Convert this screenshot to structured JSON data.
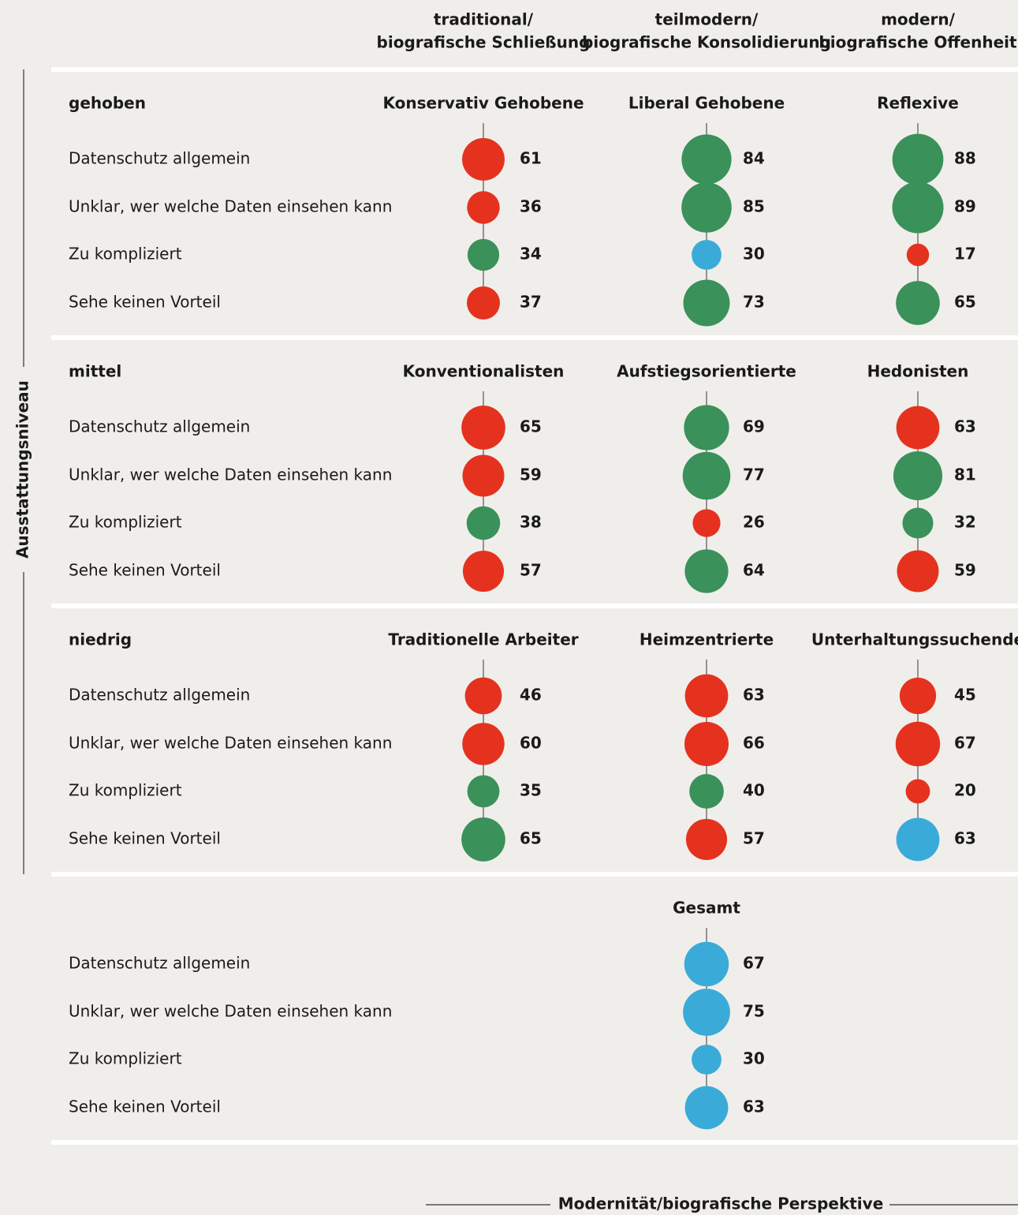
{
  "chart_data": {
    "type": "bubble",
    "columns": [
      [
        "traditional/",
        "biografische Schließung"
      ],
      [
        "teilmodern/",
        "biografische Konsolidierung"
      ],
      [
        "modern/",
        "biografische Offenheit"
      ]
    ],
    "ylabel": "Ausstattungsniveau",
    "xlabel": "Modernität/biografische Perspektive",
    "items": [
      "Datenschutz allgemein",
      "Unklar, wer welche Daten einsehen kann",
      "Zu kompliziert",
      "Sehe keinen Vorteil"
    ],
    "panels": [
      {
        "level": "gehoben",
        "groups": [
          {
            "name": "Konservativ Gehobene",
            "values": [
              61,
              36,
              34,
              37
            ],
            "colors": [
              "#e5321f",
              "#e5321f",
              "#3a915a",
              "#e5321f"
            ]
          },
          {
            "name": "Liberal Gehobene",
            "values": [
              84,
              85,
              30,
              73
            ],
            "colors": [
              "#3a915a",
              "#3a915a",
              "#3aabd8",
              "#3a915a"
            ]
          },
          {
            "name": "Reflexive",
            "values": [
              88,
              89,
              17,
              65
            ],
            "colors": [
              "#3a915a",
              "#3a915a",
              "#e5321f",
              "#3a915a"
            ]
          }
        ]
      },
      {
        "level": "mittel",
        "groups": [
          {
            "name": "Konventionalisten",
            "values": [
              65,
              59,
              38,
              57
            ],
            "colors": [
              "#e5321f",
              "#e5321f",
              "#3a915a",
              "#e5321f"
            ]
          },
          {
            "name": "Aufstiegsorientierte",
            "values": [
              69,
              77,
              26,
              64
            ],
            "colors": [
              "#3a915a",
              "#3a915a",
              "#e5321f",
              "#3a915a"
            ]
          },
          {
            "name": "Hedonisten",
            "values": [
              63,
              81,
              32,
              59
            ],
            "colors": [
              "#e5321f",
              "#3a915a",
              "#3a915a",
              "#e5321f"
            ]
          }
        ]
      },
      {
        "level": "niedrig",
        "groups": [
          {
            "name": "Traditionelle Arbeiter",
            "values": [
              46,
              60,
              35,
              65
            ],
            "colors": [
              "#e5321f",
              "#e5321f",
              "#3a915a",
              "#3a915a"
            ]
          },
          {
            "name": "Heimzentrierte",
            "values": [
              63,
              66,
              40,
              57
            ],
            "colors": [
              "#e5321f",
              "#e5321f",
              "#3a915a",
              "#e5321f"
            ]
          },
          {
            "name": "Unterhaltungssuchende",
            "values": [
              45,
              67,
              20,
              63
            ],
            "colors": [
              "#e5321f",
              "#e5321f",
              "#e5321f",
              "#3aabd8"
            ]
          }
        ]
      },
      {
        "groups": [
          null,
          {
            "name": "Gesamt",
            "values": [
              67,
              75,
              30,
              63
            ],
            "colors": [
              "#3aabd8",
              "#3aabd8",
              "#3aabd8",
              "#3aabd8"
            ]
          },
          null
        ]
      }
    ]
  }
}
